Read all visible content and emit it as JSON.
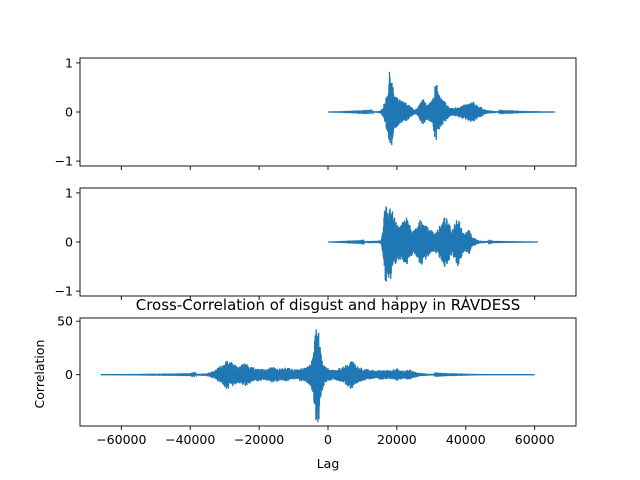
{
  "colors": {
    "series": "#1f77b4",
    "axes": "#000000",
    "background": "#ffffff"
  },
  "chart_data": [
    {
      "type": "line",
      "title": "",
      "xlabel": "",
      "ylabel": "",
      "xlim": [
        -72000,
        72000
      ],
      "ylim": [
        -1.1,
        1.1
      ],
      "xticks": [
        -60000,
        -40000,
        -20000,
        0,
        20000,
        40000,
        60000
      ],
      "xtick_labels_shown": false,
      "yticks": [
        -1,
        0,
        1
      ],
      "ytick_labels": [
        "−1",
        "0",
        "1"
      ],
      "signal": {
        "x_start": 0,
        "x_end": 66000,
        "envelope": [
          [
            0,
            0.0
          ],
          [
            12000,
            0.01
          ],
          [
            15000,
            0.02
          ],
          [
            16000,
            0.1
          ],
          [
            17000,
            0.35
          ],
          [
            17600,
            0.6
          ],
          [
            18000,
            0.95
          ],
          [
            18400,
            0.75
          ],
          [
            19000,
            0.45
          ],
          [
            20000,
            0.3
          ],
          [
            21000,
            0.25
          ],
          [
            22000,
            0.22
          ],
          [
            23000,
            0.18
          ],
          [
            24000,
            0.12
          ],
          [
            25000,
            0.05
          ],
          [
            26000,
            0.08
          ],
          [
            27000,
            0.22
          ],
          [
            28000,
            0.28
          ],
          [
            29000,
            0.15
          ],
          [
            30000,
            0.25
          ],
          [
            31000,
            0.55
          ],
          [
            31500,
            0.6
          ],
          [
            32000,
            0.42
          ],
          [
            33000,
            0.28
          ],
          [
            34000,
            0.22
          ],
          [
            35000,
            0.12
          ],
          [
            36000,
            0.08
          ],
          [
            38000,
            0.12
          ],
          [
            40000,
            0.16
          ],
          [
            42000,
            0.22
          ],
          [
            44000,
            0.12
          ],
          [
            46000,
            0.04
          ],
          [
            50000,
            0.01
          ],
          [
            56000,
            0.005
          ],
          [
            66000,
            0.0
          ]
        ]
      }
    },
    {
      "type": "line",
      "title": "",
      "xlabel": "",
      "ylabel": "",
      "xlim": [
        -72000,
        72000
      ],
      "ylim": [
        -1.1,
        1.1
      ],
      "xticks": [
        -60000,
        -40000,
        -20000,
        0,
        20000,
        40000,
        60000
      ],
      "xtick_labels_shown": false,
      "yticks": [
        -1,
        0,
        1
      ],
      "ytick_labels": [
        "−1",
        "0",
        "1"
      ],
      "signal": {
        "x_start": 0,
        "x_end": 61000,
        "envelope": [
          [
            0,
            0.0
          ],
          [
            10000,
            0.01
          ],
          [
            13000,
            0.03
          ],
          [
            14000,
            0.02
          ],
          [
            15500,
            0.04
          ],
          [
            16200,
            0.5
          ],
          [
            16800,
            1.0
          ],
          [
            17400,
            0.7
          ],
          [
            18000,
            0.85
          ],
          [
            19000,
            0.55
          ],
          [
            20000,
            0.4
          ],
          [
            21000,
            0.35
          ],
          [
            22000,
            0.45
          ],
          [
            23000,
            0.55
          ],
          [
            24000,
            0.3
          ],
          [
            25000,
            0.25
          ],
          [
            26000,
            0.35
          ],
          [
            27000,
            0.5
          ],
          [
            28000,
            0.4
          ],
          [
            29000,
            0.3
          ],
          [
            30000,
            0.25
          ],
          [
            31000,
            0.2
          ],
          [
            32000,
            0.3
          ],
          [
            33000,
            0.38
          ],
          [
            34000,
            0.55
          ],
          [
            35000,
            0.4
          ],
          [
            36000,
            0.25
          ],
          [
            37000,
            0.45
          ],
          [
            37800,
            0.6
          ],
          [
            38600,
            0.35
          ],
          [
            39500,
            0.2
          ],
          [
            41000,
            0.25
          ],
          [
            42000,
            0.1
          ],
          [
            44000,
            0.03
          ],
          [
            48000,
            0.005
          ],
          [
            61000,
            0.0
          ]
        ]
      }
    },
    {
      "type": "line",
      "title": "Cross-Correlation of disgust and happy in RAVDESS",
      "xlabel": "Lag",
      "ylabel": "Correlation",
      "xlim": [
        -72000,
        72000
      ],
      "ylim": [
        -48,
        53
      ],
      "xticks": [
        -60000,
        -40000,
        -20000,
        0,
        20000,
        40000,
        60000
      ],
      "xtick_labels": [
        "−60000",
        "−40000",
        "−20000",
        "0",
        "20000",
        "40000",
        "60000"
      ],
      "yticks": [
        0,
        50
      ],
      "ytick_labels": [
        "0",
        "50"
      ],
      "signal": {
        "x_start": -66000,
        "x_end": 60000,
        "envelope": [
          [
            -66000,
            0.0
          ],
          [
            -40000,
            0.3
          ],
          [
            -35000,
            1.5
          ],
          [
            -33000,
            4
          ],
          [
            -31000,
            9
          ],
          [
            -29500,
            14
          ],
          [
            -28000,
            12
          ],
          [
            -26000,
            8
          ],
          [
            -24000,
            11
          ],
          [
            -22000,
            7
          ],
          [
            -20000,
            6
          ],
          [
            -18000,
            5
          ],
          [
            -16000,
            8
          ],
          [
            -14000,
            6
          ],
          [
            -12000,
            7
          ],
          [
            -10000,
            5
          ],
          [
            -8000,
            6
          ],
          [
            -6000,
            8
          ],
          [
            -5000,
            12
          ],
          [
            -4500,
            18
          ],
          [
            -4000,
            30
          ],
          [
            -3500,
            44
          ],
          [
            -3000,
            47
          ],
          [
            -2500,
            40
          ],
          [
            -2000,
            20
          ],
          [
            -1000,
            8
          ],
          [
            0,
            6
          ],
          [
            2000,
            5
          ],
          [
            4000,
            7
          ],
          [
            6000,
            12
          ],
          [
            7000,
            15
          ],
          [
            8000,
            9
          ],
          [
            10000,
            6
          ],
          [
            12000,
            5
          ],
          [
            14000,
            4
          ],
          [
            16000,
            5
          ],
          [
            18000,
            4
          ],
          [
            20000,
            6
          ],
          [
            22000,
            4
          ],
          [
            24000,
            5
          ],
          [
            25000,
            3
          ],
          [
            27000,
            1.5
          ],
          [
            32000,
            0.4
          ],
          [
            45000,
            0.05
          ],
          [
            60000,
            0.0
          ]
        ]
      }
    }
  ]
}
